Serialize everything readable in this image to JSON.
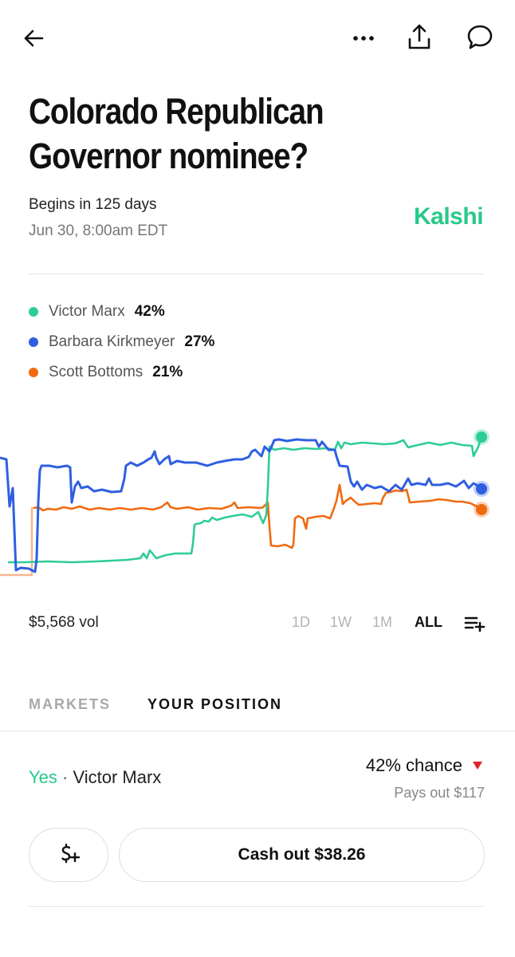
{
  "header": {
    "back_icon": "arrow-left-icon",
    "more_icon": "more-horizontal-icon",
    "share_icon": "share-icon",
    "comment_icon": "comment-icon"
  },
  "market": {
    "title": "Colorado Republican Governor nominee?",
    "begins": "Begins in 125 days",
    "date": "Jun 30, 8:00am EDT",
    "brand": "Kalshi",
    "brand_color": "#28c98a"
  },
  "legend": [
    {
      "name": "Victor Marx",
      "pct": "42%",
      "color": "#2ecc96"
    },
    {
      "name": "Barbara Kirkmeyer",
      "pct": "27%",
      "color": "#2f5fe0"
    },
    {
      "name": "Scott Bottoms",
      "pct": "21%",
      "color": "#f06a10"
    }
  ],
  "chart_data": {
    "type": "line",
    "series": [
      {
        "name": "Victor Marx",
        "color": "#2ecc96",
        "current": 42
      },
      {
        "name": "Barbara Kirkmeyer",
        "color": "#2f5fe0",
        "current": 27
      },
      {
        "name": "Scott Bottoms",
        "color": "#f06a10",
        "current": 21
      }
    ]
  },
  "footer": {
    "volume": "$5,568 vol",
    "ranges": [
      "1D",
      "1W",
      "1M",
      "ALL"
    ],
    "active_range": "ALL",
    "chart_settings_icon": "playlist-add-icon"
  },
  "tabs": {
    "markets": "MARKETS",
    "your_position": "YOUR POSITION"
  },
  "position": {
    "side": "Yes",
    "separator": "·",
    "candidate": "Victor Marx",
    "chance": "42% chance",
    "trend": "down",
    "trend_color": "#e0242b",
    "payout": "Pays out $117",
    "add_funds_icon": "dollar-plus-icon",
    "cash_out": "Cash out $38.26"
  }
}
